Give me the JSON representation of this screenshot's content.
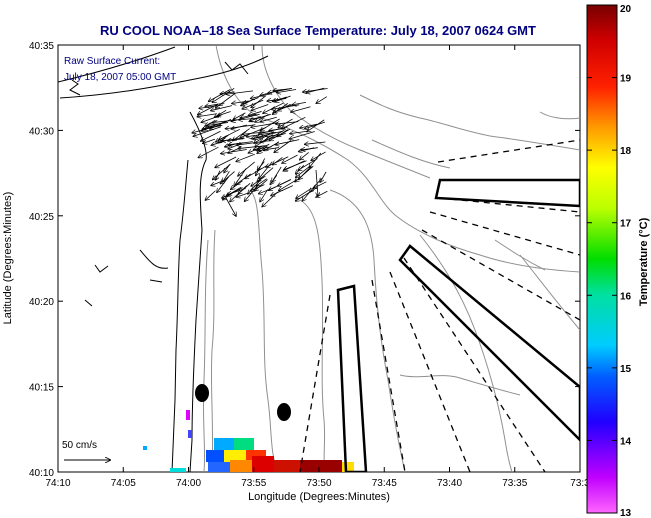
{
  "title": "RU COOL  NOAA–18  Sea Surface Temperature:  July 18, 2007 0624 GMT",
  "current_note": {
    "line1": "Raw Surface Current:",
    "line2": "July 18, 2007 05:00 GMT"
  },
  "scale_label": "50 cm/s",
  "axes": {
    "xlabel": "Longitude (Degrees:Minutes)",
    "ylabel": "Latitude (Degrees:Minutes)",
    "xticks": [
      "74:10",
      "74:05",
      "74:00",
      "73:55",
      "73:50",
      "73:45",
      "73:40",
      "73:35",
      "73:3"
    ],
    "yticks": [
      "40:35",
      "40:30",
      "40:25",
      "40:20",
      "40:15",
      "40:10"
    ]
  },
  "colorbar": {
    "label": "Temperature (°C)",
    "ticks": [
      "20",
      "19",
      "18",
      "17",
      "16",
      "15",
      "14",
      "13"
    ],
    "min": 13,
    "max": 20
  },
  "colors": {
    "title_text": "#000080",
    "note_text": "#000080",
    "coast": "#000000",
    "bathymetry": "#909090"
  }
}
